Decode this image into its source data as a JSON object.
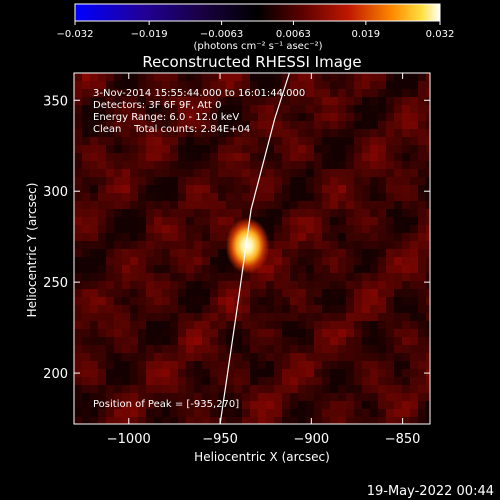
{
  "chart_data": {
    "type": "heatmap",
    "title": "Reconstructed RHESSI Image",
    "xlabel": "Heliocentric X (arcsec)",
    "ylabel": "Heliocentric Y (arcsec)",
    "xlim": [
      -1030,
      -835
    ],
    "ylim": [
      172,
      365
    ],
    "x_ticks": [
      -1000,
      -950,
      -900,
      -850
    ],
    "x_tick_labels": [
      "−1000",
      "−950",
      "−900",
      "−850"
    ],
    "y_ticks": [
      200,
      250,
      300,
      350
    ],
    "y_tick_labels": [
      "200",
      "250",
      "300",
      "350"
    ],
    "colorbar": {
      "range": [
        -0.032,
        0.032
      ],
      "ticks": [
        -0.032,
        -0.019,
        -0.0063,
        0.0063,
        0.019,
        0.032
      ],
      "tick_labels": [
        "−0.032",
        "−0.019",
        "−0.0063",
        "0.0063",
        "0.019",
        "0.032"
      ],
      "units_line": "(photons cm⁻² s⁻¹ asec⁻²)"
    },
    "peak": {
      "x": -935,
      "y": 270
    },
    "limb": [
      {
        "x": -950,
        "y": 172
      },
      {
        "x": -940,
        "y": 240
      },
      {
        "x": -933,
        "y": 290
      },
      {
        "x": -920,
        "y": 340
      },
      {
        "x": -912,
        "y": 365
      }
    ]
  },
  "annotations": {
    "time": "3-Nov-2014 15:55:44.000 to 16:01:44.000",
    "detectors": "Detectors: 3F 6F 9F, Att 0",
    "energy": "Energy Range: 6.0 - 12.0 keV",
    "clean": "Clean    Total counts: 2.84E+04",
    "peak_position": "Position of Peak = [-935,270]"
  },
  "timestamp": "19-May-2022 00:44",
  "colors": {
    "background": "#000000",
    "text": "#ffffff"
  }
}
